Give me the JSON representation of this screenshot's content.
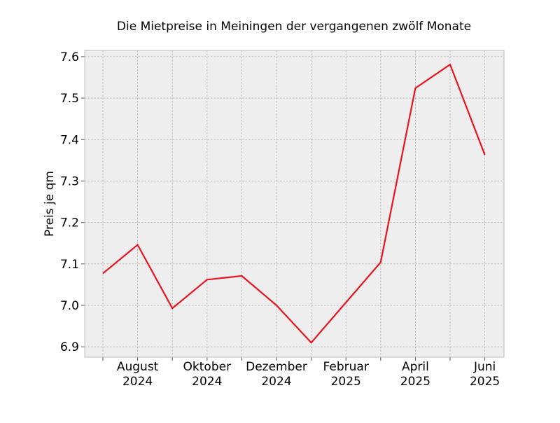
{
  "chart_data": {
    "type": "line",
    "title": "Die Mietpreise in Meiningen der vergangenen zwölf Monate",
    "xlabel": "",
    "ylabel": "Preis je qm",
    "x": [
      "2024-07",
      "2024-08",
      "2024-09",
      "2024-10",
      "2024-11",
      "2024-12",
      "2025-01",
      "2025-02",
      "2025-03",
      "2025-04",
      "2025-05",
      "2025-06"
    ],
    "series": [
      {
        "values": [
          7.077,
          7.146,
          6.993,
          7.062,
          7.071,
          7.0,
          6.91,
          7.007,
          7.104,
          7.524,
          7.581,
          7.363
        ],
        "color": "#e8141f"
      }
    ],
    "ylim": [
      6.875,
      7.615
    ],
    "yticks": [
      "6.9",
      "7.0",
      "7.1",
      "7.2",
      "7.3",
      "7.4",
      "7.5",
      "7.6"
    ],
    "xticks": [
      {
        "month": "August",
        "year": "2024"
      },
      {
        "month": "Oktober",
        "year": "2024"
      },
      {
        "month": "Dezember",
        "year": "2024"
      },
      {
        "month": "Februar",
        "year": "2025"
      },
      {
        "month": "April",
        "year": "2025"
      },
      {
        "month": "Juni",
        "year": "2025"
      }
    ],
    "grid": true,
    "colors": {
      "plot_background": "#eeeeee",
      "grid": "#b3b3b3",
      "frame": "#bcbcbc"
    }
  }
}
